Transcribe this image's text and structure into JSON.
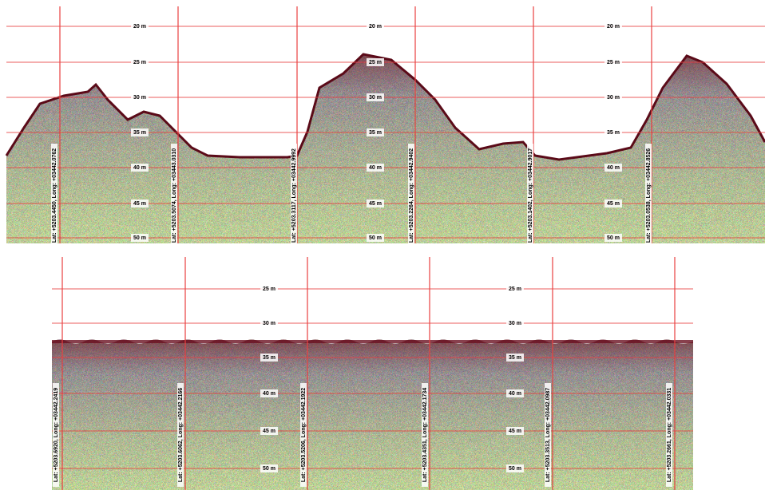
{
  "top": {
    "depth_labels": [
      "20 m",
      "25 m",
      "30 m",
      "35 m",
      "40 m",
      "45 m",
      "50 m"
    ],
    "markers": [
      "Lat: +5203.4450, Long: +03442.0762",
      "Lat: +5203.5074, Long: +03443.0310",
      "Lat: +5203.3117, Long: +03442.9992",
      "Lat: +5203.2264, Long: +03442.9402",
      "Lat: +5203.1402, Long: +03442.9017",
      "Lat: +5203.0538, Long: +03442.8526"
    ]
  },
  "bottom": {
    "depth_labels": [
      "25 m",
      "30 m",
      "35 m",
      "40 m",
      "45 m",
      "50 m"
    ],
    "markers": [
      "Lat: +5203.6920, Long: +03442.2419",
      "Lat: +5203.6062, Long: +03442.2166",
      "Lat: +5203.5206, Long: +03442.1922",
      "Lat: +5203.4351, Long: +03442.1734",
      "Lat: +5203.3513, Long: +03442.0987",
      "Lat: +5203.2661, Long: +03442.0331"
    ]
  }
}
